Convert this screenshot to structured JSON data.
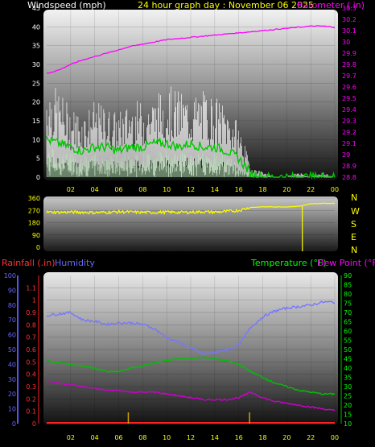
{
  "header": {
    "wind_title": "Windspeed (mph)",
    "date_title": "24 hour graph day : November 06 2025",
    "baro_title": "Barometer (.in)"
  },
  "panel3": {
    "rain_title": "Rainfall (.in)",
    "hum_title": "Humidity",
    "temp_title": "Temperature (°F)",
    "dew_title": "Dew Point (°F)"
  },
  "compass": [
    "N",
    "W",
    "S",
    "E",
    "N"
  ],
  "colors": {
    "wind_title": "#ffffff",
    "date_title": "#ffff00",
    "barometer": "#ff00ff",
    "wind_avg": "#00c800",
    "wind_gust": "#ffffff",
    "wind_dir": "#ffff00",
    "humidity": "#7777ff",
    "temperature": "#00c000",
    "dewpoint": "#cc00cc",
    "rainfall": "#ff2020",
    "rain_title": "#ff3333",
    "hum_title": "#6666ff",
    "temp_title": "#00ff00",
    "dew_title": "#ff00ff"
  },
  "chart_data": [
    {
      "type": "line",
      "x_ticks": [
        "02",
        "04",
        "06",
        "08",
        "10",
        "12",
        "14",
        "16",
        "18",
        "20",
        "22",
        "00"
      ],
      "y_left_ticks": [
        "0",
        "5",
        "10",
        "15",
        "20",
        "25",
        "30",
        "35",
        "40",
        "45"
      ],
      "ylim_left": [
        0,
        45
      ],
      "y_right_ticks": [
        "28.8",
        "28.9",
        "29",
        "29.1",
        "29.2",
        "29.3",
        "29.4",
        "29.5",
        "29.6",
        "29.7",
        "29.8",
        "29.9",
        "30",
        "30.1",
        "30.2",
        "30.3"
      ],
      "ylim_right": [
        28.8,
        30.3
      ],
      "hours": [
        0,
        1,
        2,
        3,
        4,
        5,
        6,
        7,
        8,
        9,
        10,
        11,
        12,
        13,
        14,
        15,
        16,
        17,
        18,
        19,
        20,
        21,
        22,
        23,
        24
      ],
      "series": [
        {
          "values": [
            18,
            16,
            13,
            12,
            14,
            13,
            12,
            14,
            14,
            15,
            17,
            16,
            15,
            16,
            15,
            13,
            10,
            2,
            1,
            0,
            0,
            1,
            0,
            1,
            0
          ]
        },
        {
          "values": [
            10,
            9,
            8,
            7,
            8,
            8,
            7,
            8,
            8,
            9,
            9,
            8,
            9,
            8,
            8,
            7,
            5,
            1,
            0,
            0,
            0,
            0,
            0,
            0,
            0
          ]
        },
        {
          "values": [
            29.72,
            29.75,
            29.8,
            29.84,
            29.87,
            29.9,
            29.93,
            29.96,
            29.98,
            30.0,
            30.02,
            30.03,
            30.04,
            30.05,
            30.06,
            30.07,
            30.08,
            30.09,
            30.1,
            30.11,
            30.12,
            30.13,
            30.14,
            30.14,
            30.13
          ]
        }
      ]
    },
    {
      "type": "line",
      "x_ticks": [
        "02",
        "04",
        "06",
        "08",
        "10",
        "12",
        "14",
        "16",
        "18",
        "20",
        "22",
        "00"
      ],
      "y_ticks": [
        "0",
        "90",
        "180",
        "270",
        "360"
      ],
      "ylim": [
        0,
        360
      ],
      "hours": [
        0,
        1,
        2,
        3,
        4,
        5,
        6,
        7,
        8,
        9,
        10,
        11,
        12,
        13,
        14,
        15,
        16,
        17,
        18,
        19,
        20,
        21,
        22,
        23,
        24
      ],
      "series": [
        {
          "values": [
            258,
            256,
            258,
            257,
            254,
            256,
            260,
            258,
            256,
            255,
            258,
            256,
            257,
            260,
            258,
            262,
            270,
            292,
            296,
            296,
            296,
            300,
            318,
            322,
            322
          ]
        }
      ]
    },
    {
      "type": "line",
      "x_ticks": [
        "02",
        "04",
        "06",
        "08",
        "10",
        "12",
        "14",
        "16",
        "18",
        "20",
        "22",
        "00"
      ],
      "y_hum_ticks": [
        "0",
        "10",
        "20",
        "30",
        "40",
        "50",
        "60",
        "70",
        "80",
        "90",
        "100"
      ],
      "ylim_hum": [
        0,
        100
      ],
      "y_rain_ticks": [
        "0",
        "0.1",
        "0.2",
        "0.3",
        "0.4",
        "0.5",
        "0.6",
        "0.7",
        "0.8",
        "0.9",
        "1",
        "1.1"
      ],
      "ylim_rain": [
        0,
        1.2
      ],
      "y_temp_ticks": [
        "10",
        "15",
        "20",
        "25",
        "30",
        "35",
        "40",
        "45",
        "50",
        "55",
        "60",
        "65",
        "70",
        "75",
        "80",
        "85",
        "90"
      ],
      "ylim_temp": [
        10,
        90
      ],
      "hours": [
        0,
        1,
        2,
        3,
        4,
        5,
        6,
        7,
        8,
        9,
        10,
        11,
        12,
        13,
        14,
        15,
        16,
        17,
        18,
        19,
        20,
        21,
        22,
        23,
        24
      ],
      "series": [
        {
          "values": [
            73,
            74,
            75,
            70,
            69,
            67,
            68,
            68,
            67,
            64,
            58,
            55,
            51,
            47,
            48,
            50,
            53,
            65,
            72,
            76,
            78,
            79,
            80,
            82,
            82
          ]
        },
        {
          "values": [
            44,
            43,
            42,
            41,
            40,
            38,
            38,
            40,
            41,
            43,
            44,
            45,
            45,
            46,
            45,
            44,
            42,
            38,
            35,
            32,
            30,
            28,
            27,
            26,
            26
          ]
        },
        {
          "values": [
            33,
            32,
            31,
            30,
            29,
            28,
            28,
            27,
            27,
            27,
            26,
            25,
            24,
            23,
            23,
            23,
            24,
            27,
            24,
            22,
            21,
            20,
            19,
            18,
            17
          ]
        },
        {
          "values": [
            0,
            0,
            0,
            0,
            0,
            0,
            0,
            0,
            0,
            0,
            0,
            0,
            0,
            0,
            0,
            0,
            0,
            0,
            0,
            0,
            0,
            0,
            0,
            0,
            0
          ]
        }
      ],
      "markers_hours": [
        6.8,
        16.9
      ]
    }
  ]
}
